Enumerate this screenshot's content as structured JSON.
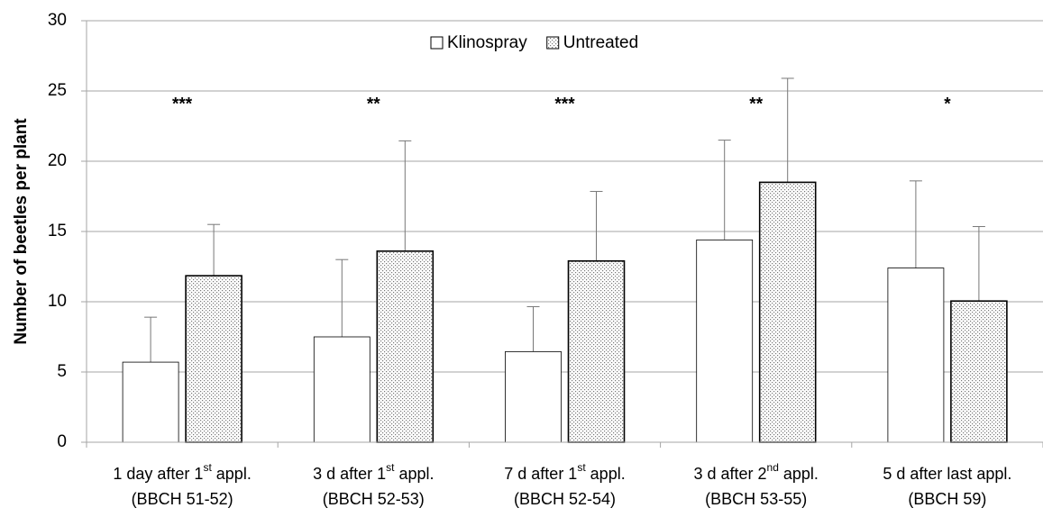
{
  "chart_data": {
    "type": "bar",
    "y_label": "Number of beetles per plant",
    "categories": [
      [
        "1 day after 1st appl.",
        "(BBCH 51-52)"
      ],
      [
        "3 d after 1st appl.",
        "(BBCH 52-53)"
      ],
      [
        "7 d after 1st appl.",
        "(BBCH 52-54)"
      ],
      [
        "3 d after 2nd appl.",
        "(BBCH 53-55)"
      ],
      [
        "5 d after last appl.",
        "(BBCH 59)"
      ]
    ],
    "series": [
      {
        "name": "Klinospray",
        "color": "#ffffff",
        "pattern": "solid",
        "values": [
          5.7,
          7.5,
          6.45,
          14.4,
          12.4
        ],
        "errors": [
          3.2,
          5.5,
          3.2,
          7.1,
          6.2
        ]
      },
      {
        "name": "Untreated",
        "color": "#ffffff",
        "pattern": "dotted",
        "values": [
          11.85,
          13.6,
          12.9,
          18.5,
          10.05
        ],
        "errors": [
          3.65,
          7.85,
          4.95,
          7.4,
          5.3
        ]
      }
    ],
    "annotations": [
      "***",
      "**",
      "***",
      "**",
      "*"
    ],
    "annotation_y": 24,
    "ylim": [
      0,
      30
    ],
    "yticks": [
      0,
      5,
      10,
      15,
      20,
      25,
      30
    ],
    "grid": true,
    "legend": "top"
  }
}
